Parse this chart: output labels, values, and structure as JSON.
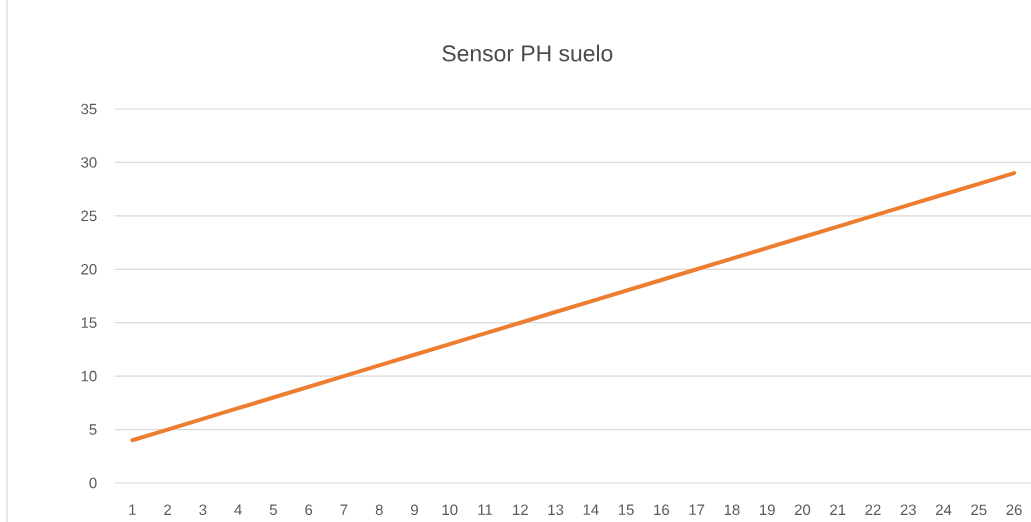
{
  "chart_data": {
    "type": "line",
    "title": "Sensor PH suelo",
    "categories": [
      "1",
      "2",
      "3",
      "4",
      "5",
      "6",
      "7",
      "8",
      "9",
      "10",
      "11",
      "12",
      "13",
      "14",
      "15",
      "16",
      "17",
      "18",
      "19",
      "20",
      "21",
      "22",
      "23",
      "24",
      "25",
      "26"
    ],
    "series": [
      {
        "color": "#ed7d31",
        "values": [
          4,
          5,
          6,
          7,
          8,
          9,
          10,
          11,
          12,
          13,
          14,
          15,
          16,
          17,
          18,
          19,
          20,
          21,
          22,
          23,
          24,
          25,
          26,
          27,
          28,
          29
        ]
      }
    ],
    "ylim": [
      0,
      35
    ],
    "yticks": [
      0,
      5,
      10,
      15,
      20,
      25,
      30,
      35
    ],
    "grid": "y",
    "marker": "none",
    "line_style": "solid"
  }
}
